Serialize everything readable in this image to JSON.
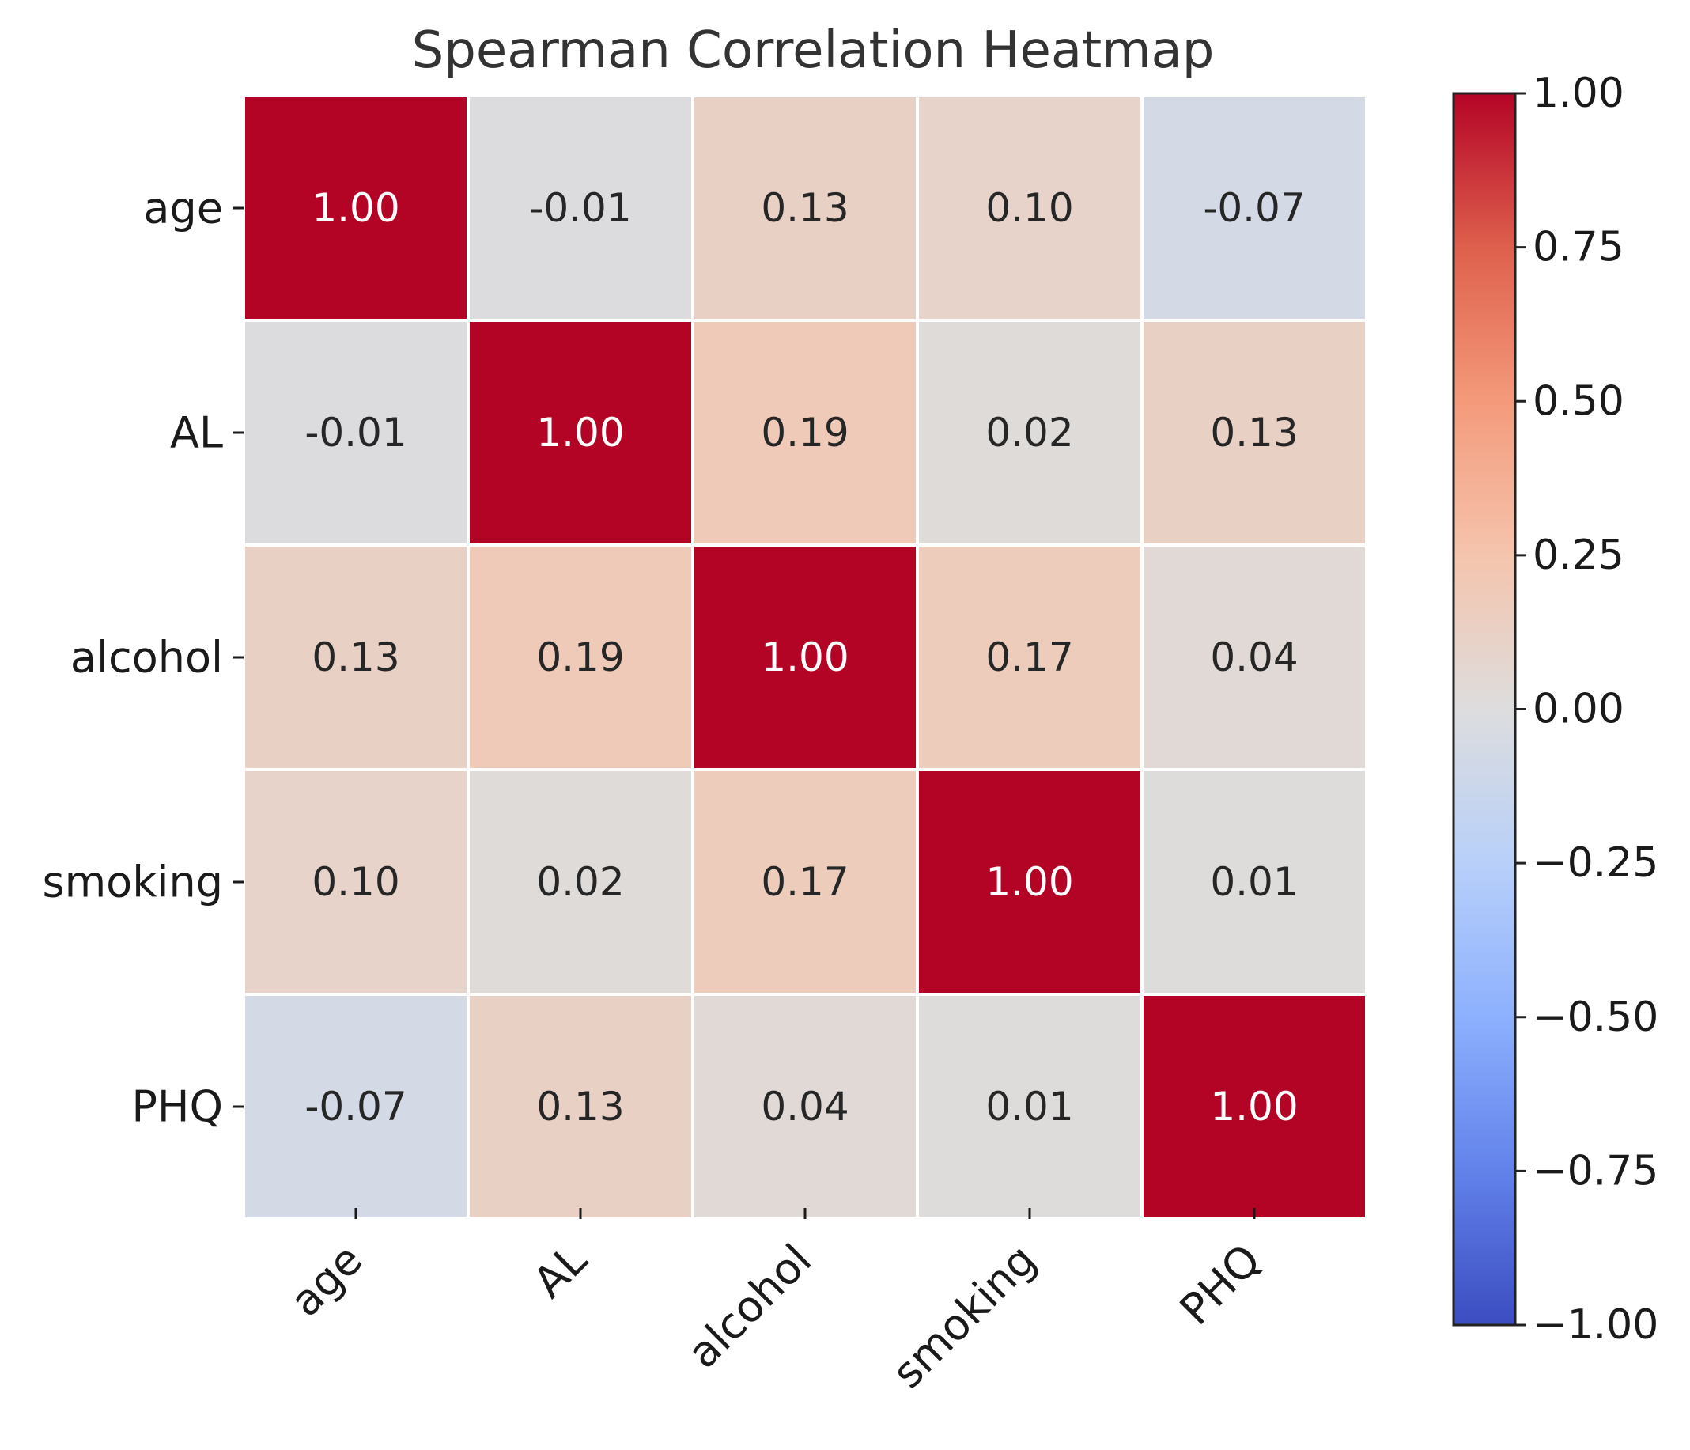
{
  "chart_data": {
    "type": "heatmap",
    "title": "Spearman Correlation Heatmap",
    "row_labels": [
      "age",
      "AL",
      "alcohol",
      "smoking",
      "PHQ"
    ],
    "col_labels": [
      "age",
      "AL",
      "alcohol",
      "smoking",
      "PHQ"
    ],
    "values": [
      [
        1.0,
        -0.01,
        0.13,
        0.1,
        -0.07
      ],
      [
        -0.01,
        1.0,
        0.19,
        0.02,
        0.13
      ],
      [
        0.13,
        0.19,
        1.0,
        0.17,
        0.04
      ],
      [
        0.1,
        0.02,
        0.17,
        1.0,
        0.01
      ],
      [
        -0.07,
        0.13,
        0.04,
        0.01,
        1.0
      ]
    ],
    "cell_labels": [
      [
        "1.00",
        "-0.01",
        "0.13",
        "0.10",
        "-0.07"
      ],
      [
        "-0.01",
        "1.00",
        "0.19",
        "0.02",
        "0.13"
      ],
      [
        "0.13",
        "0.19",
        "1.00",
        "0.17",
        "0.04"
      ],
      [
        "0.10",
        "0.02",
        "0.17",
        "1.00",
        "0.01"
      ],
      [
        "-0.07",
        "0.13",
        "0.04",
        "0.01",
        "1.00"
      ]
    ],
    "colormap": "coolwarm",
    "colorbar": {
      "range": [
        -1.0,
        1.0
      ],
      "ticks": [
        1.0,
        0.75,
        0.5,
        0.25,
        0.0,
        -0.25,
        -0.5,
        -0.75,
        -1.0
      ],
      "tick_labels": [
        "1.00",
        "0.75",
        "0.50",
        "0.25",
        "0.00",
        "−0.25",
        "−0.50",
        "−0.75",
        "−1.00"
      ],
      "placement": "right"
    },
    "colors": {
      "cell_border": "#ffffff",
      "text_dark": "#262626",
      "text_light": "#ffffff",
      "axis_text": "#1a1a1a"
    }
  }
}
